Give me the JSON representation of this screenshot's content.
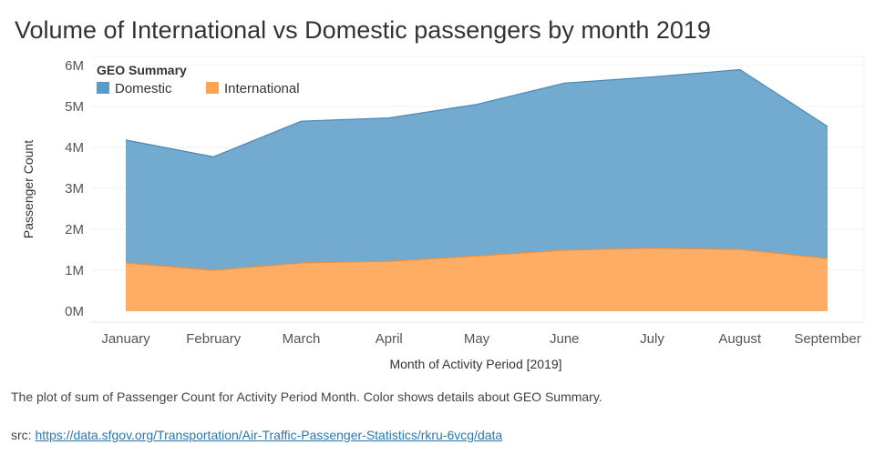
{
  "chart_data": {
    "type": "area",
    "stacked": true,
    "title": "Volume of International vs Domestic passengers by month 2019",
    "xlabel": "Month of Activity Period [2019]",
    "ylabel": "Passenger Count",
    "categories": [
      "January",
      "February",
      "March",
      "April",
      "May",
      "June",
      "July",
      "August",
      "September"
    ],
    "yticks": [
      {
        "value": 0,
        "label": "0M"
      },
      {
        "value": 1000000,
        "label": "1M"
      },
      {
        "value": 2000000,
        "label": "2M"
      },
      {
        "value": 3000000,
        "label": "3M"
      },
      {
        "value": 4000000,
        "label": "4M"
      },
      {
        "value": 5000000,
        "label": "5M"
      },
      {
        "value": 6000000,
        "label": "6M"
      }
    ],
    "ylim": [
      0,
      6200000
    ],
    "grid": true,
    "legend": {
      "title": "GEO Summary",
      "placement": "top-left",
      "entries": [
        {
          "name": "Domestic",
          "color": "#5b9bc7"
        },
        {
          "name": "International",
          "color": "#ffa454"
        }
      ]
    },
    "series": [
      {
        "name": "International",
        "color": "#ffa454",
        "values": [
          1180000,
          1000000,
          1180000,
          1220000,
          1350000,
          1490000,
          1540000,
          1510000,
          1290000
        ]
      },
      {
        "name": "Domestic",
        "color": "#5b9bc7",
        "values": [
          3000000,
          2770000,
          3460000,
          3500000,
          3700000,
          4080000,
          4180000,
          4390000,
          3220000
        ]
      }
    ]
  },
  "caption": "The plot of sum of Passenger Count for Activity Period Month.  Color shows details about GEO Summary.",
  "source": {
    "prefix": "src: ",
    "link": "https://data.sfgov.org/Transportation/Air-Traffic-Passenger-Statistics/rkru-6vcg/data"
  }
}
